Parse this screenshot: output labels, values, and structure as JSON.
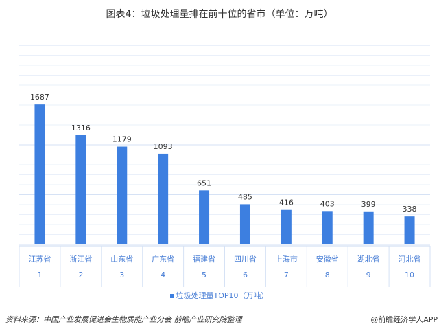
{
  "title": "图表4：垃圾处理量排在前十位的省市（单位：万吨）",
  "chart_data": {
    "type": "bar",
    "title": "图表4：垃圾处理量排在前十位的省市（单位：万吨）",
    "categories": [
      "江苏省",
      "浙江省",
      "山东省",
      "广东省",
      "福建省",
      "四川省",
      "上海市",
      "安徽省",
      "湖北省",
      "河北省"
    ],
    "ranks": [
      "1",
      "2",
      "3",
      "4",
      "5",
      "6",
      "7",
      "8",
      "9",
      "10"
    ],
    "series": [
      {
        "name": "垃圾处理量TOP10（万吨）",
        "values": [
          1687,
          1316,
          1179,
          1093,
          651,
          485,
          416,
          403,
          399,
          338
        ],
        "color": "#3d7fe0"
      }
    ],
    "ylim": [
      0,
      2400
    ],
    "grid": true,
    "legend": "bottom"
  },
  "footer": {
    "source": "资料来源：中国产业发展促进会生物质能产业分会  前瞻产业研究院整理",
    "brand": "@前瞻经济学人APP"
  }
}
